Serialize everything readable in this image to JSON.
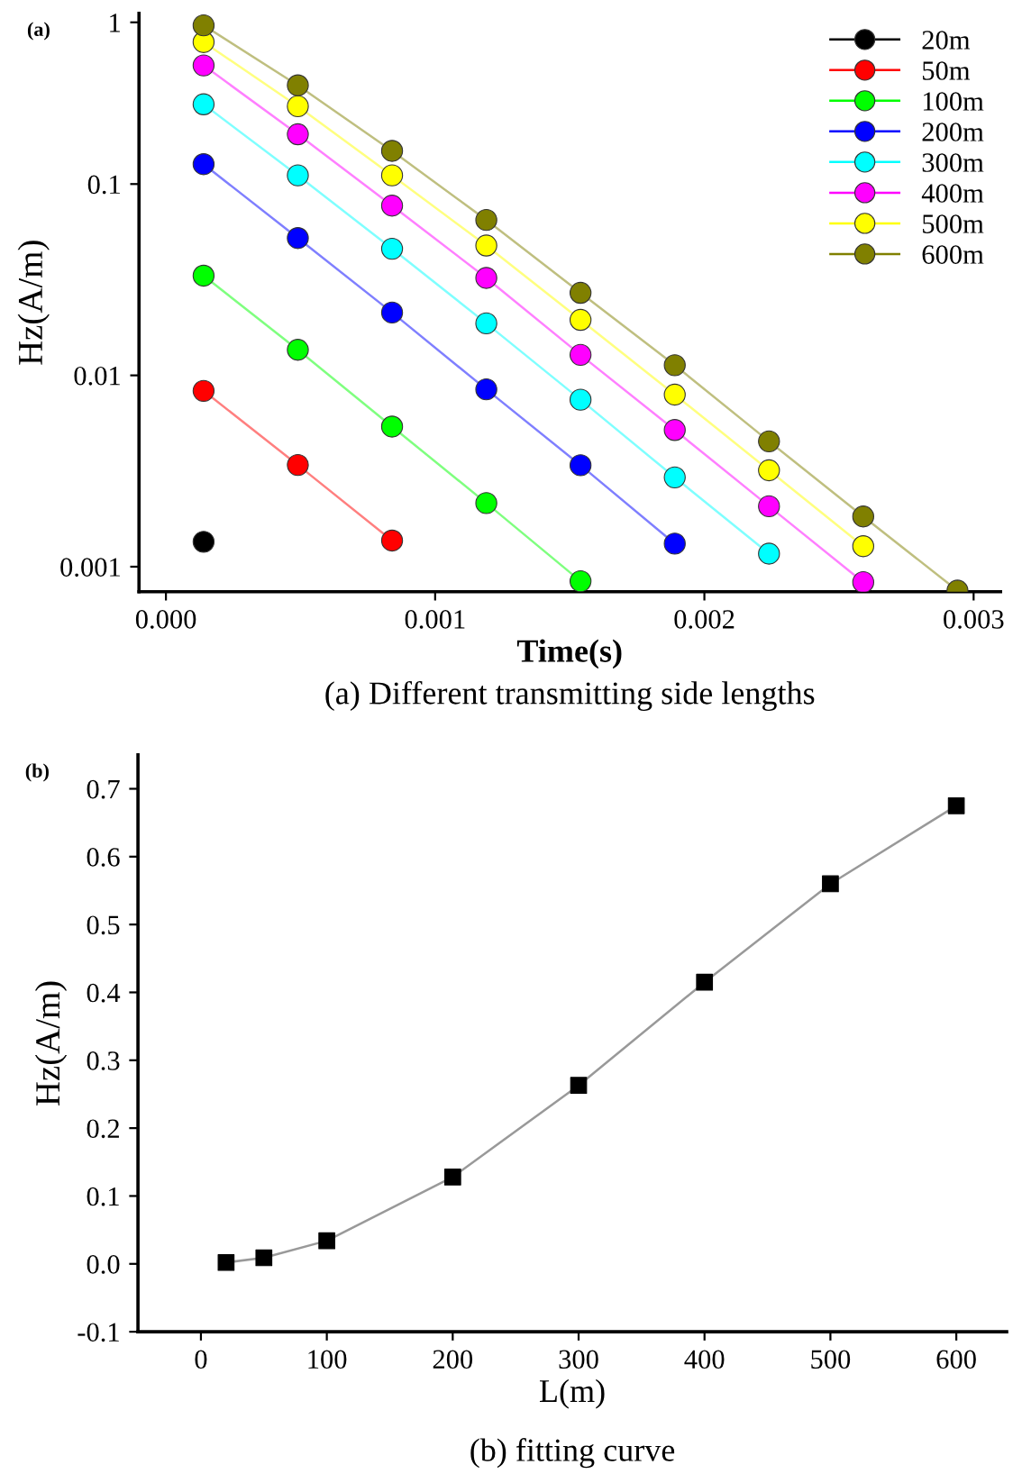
{
  "chart_data": [
    {
      "type": "line",
      "title": "(a) Different transmitting side lengths",
      "xlabel": "Time(s)",
      "ylabel": "Hz(A/m)",
      "annotations": [
        "(a)"
      ],
      "x": [
        0.00014,
        0.00049,
        0.00084,
        0.00119,
        0.00154,
        0.00189,
        0.00224,
        0.00259,
        0.00294
      ],
      "series": [
        {
          "name": "20m",
          "color": "#000000",
          "values": [
            0.00135,
            null,
            null,
            null,
            null,
            null,
            null,
            null,
            null
          ]
        },
        {
          "name": "50m",
          "color": "#ff0000",
          "values": [
            0.0083,
            0.0034,
            0.00137,
            null,
            null,
            null,
            null,
            null,
            null
          ]
        },
        {
          "name": "100m",
          "color": "#00ff00",
          "values": [
            0.0332,
            0.0136,
            0.0054,
            0.00215,
            0.00084,
            null,
            null,
            null,
            null
          ]
        },
        {
          "name": "200m",
          "color": "#0000ff",
          "values": [
            0.127,
            0.0522,
            0.0213,
            0.00845,
            0.00339,
            0.00132,
            null,
            null,
            null
          ]
        },
        {
          "name": "300m",
          "color": "#00ffff",
          "values": [
            0.261,
            0.111,
            0.0459,
            0.0187,
            0.00746,
            0.00293,
            0.00117,
            null,
            null
          ]
        },
        {
          "name": "400m",
          "color": "#ff00ff",
          "values": [
            0.417,
            0.182,
            0.0771,
            0.0323,
            0.0128,
            0.00518,
            0.00207,
            0.00083,
            null
          ]
        },
        {
          "name": "500m",
          "color": "#ffff00",
          "values": [
            0.552,
            0.255,
            0.111,
            0.0477,
            0.0195,
            0.00793,
            0.00319,
            0.00128,
            null
          ]
        },
        {
          "name": "600m",
          "color": "#808000",
          "values": [
            0.675,
            0.328,
            0.149,
            0.0649,
            0.027,
            0.0113,
            0.00452,
            0.00183,
            0.00075
          ]
        }
      ],
      "log": "y",
      "xlim": [
        -0.0001,
        0.0031
      ],
      "xticks": [
        {
          "value": 0,
          "label": "0.000"
        },
        0.001,
        0.002,
        0.003
      ],
      "ylim": [
        0.00074,
        0.78
      ],
      "yticks": [
        0.001,
        0.01,
        0.1,
        {
          "value": 0.7,
          "label": "1"
        }
      ],
      "marker": "circle",
      "legend": "top right",
      "grid": false
    },
    {
      "type": "line",
      "title": "(b) fitting curve",
      "xlabel": "L(m)",
      "ylabel": "Hz(A/m)",
      "annotations": [
        "(b)"
      ],
      "x": [
        20,
        50,
        100,
        200,
        300,
        400,
        500,
        600
      ],
      "series": [
        {
          "color": "#000000",
          "values": [
            0.002,
            0.009,
            0.034,
            0.128,
            0.263,
            0.415,
            0.56,
            0.675
          ]
        }
      ],
      "xlim": [
        -50,
        640
      ],
      "xticks": [
        0,
        100,
        200,
        300,
        400,
        500,
        600
      ],
      "ylim": [
        -0.1,
        0.75
      ],
      "yticks": [
        {
          "value": -0.1,
          "label": "-0.1"
        },
        {
          "value": 0,
          "label": "0.0"
        },
        0.1,
        0.2,
        0.3,
        0.4,
        0.5,
        0.6,
        0.7
      ],
      "marker": "square",
      "legend": false,
      "grid": false
    }
  ]
}
